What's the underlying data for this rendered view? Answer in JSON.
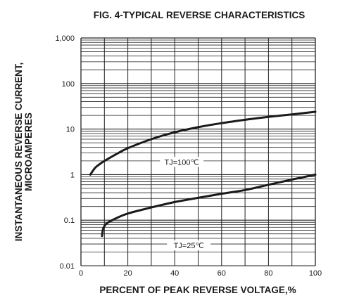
{
  "chart_data": {
    "type": "line",
    "title": "FIG. 4-TYPICAL REVERSE CHARACTERISTICS",
    "xlabel": "PERCENT OF PEAK REVERSE VOLTAGE,%",
    "ylabel_line1": "INSTANTANEOUS REVERSE CURRENT,",
    "ylabel_line2": "MICROAMPERES",
    "x_ticks": [
      "0",
      "20",
      "40",
      "60",
      "80",
      "100"
    ],
    "y_ticks": [
      "0.01",
      "0.1",
      "1",
      "10",
      "100",
      "1,000"
    ],
    "xlim": [
      0,
      100
    ],
    "ylim": [
      0.01,
      1000
    ],
    "y_scale": "log",
    "grid": true,
    "series": [
      {
        "name": "TJ=100℃",
        "x": [
          4,
          6,
          8,
          10,
          15,
          20,
          30,
          40,
          50,
          60,
          70,
          80,
          90,
          100
        ],
        "y": [
          1.0,
          1.4,
          1.7,
          2.0,
          2.8,
          3.8,
          6.0,
          8.5,
          11,
          13.5,
          16,
          18.5,
          21,
          24
        ]
      },
      {
        "name": "TJ=25℃",
        "x": [
          9,
          9.5,
          11,
          15,
          20,
          30,
          40,
          50,
          60,
          70,
          80,
          90,
          100
        ],
        "y": [
          0.045,
          0.065,
          0.085,
          0.11,
          0.14,
          0.19,
          0.25,
          0.31,
          0.38,
          0.46,
          0.6,
          0.78,
          1.0
        ]
      }
    ]
  }
}
